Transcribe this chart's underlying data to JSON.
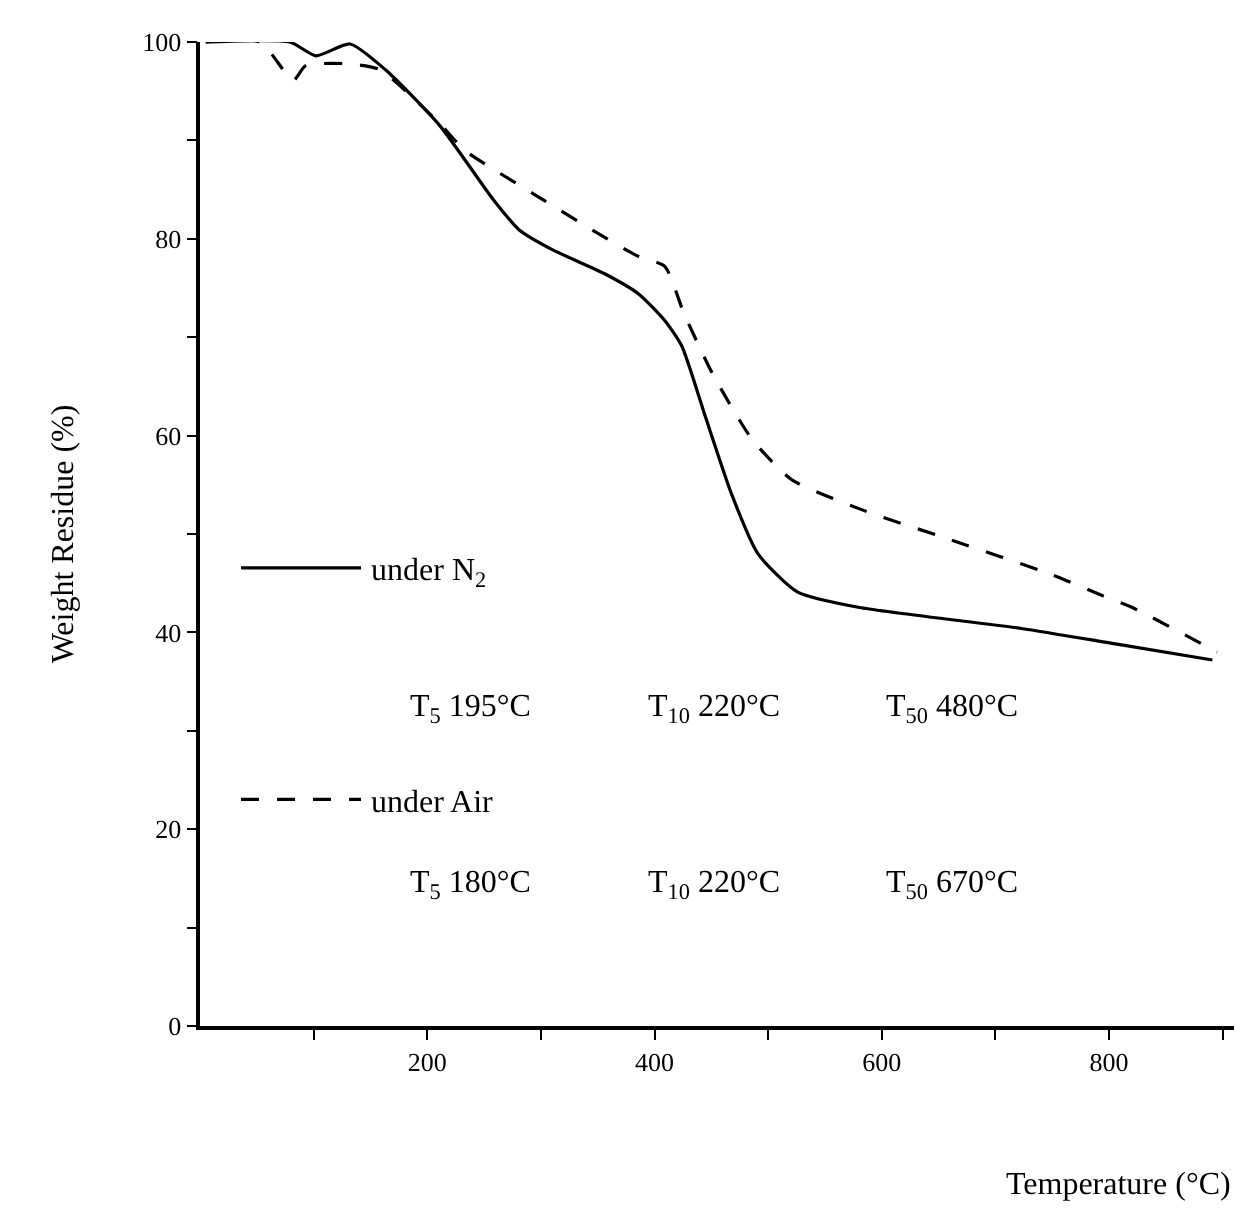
{
  "chart_data": {
    "type": "line",
    "xlabel": "Temperature (°C)",
    "ylabel": "Weight Residue (%)",
    "xlim": [
      0,
      910
    ],
    "ylim": [
      0,
      100
    ],
    "xticks": [
      {
        "value": 100,
        "label": null
      },
      200,
      {
        "value": 300,
        "label": null
      },
      400,
      {
        "value": 500,
        "label": null
      },
      600,
      {
        "value": 700,
        "label": null
      },
      800,
      {
        "value": 900,
        "label": null
      }
    ],
    "yticks": [
      0,
      {
        "value": 10,
        "label": null
      },
      20,
      {
        "value": 30,
        "label": null
      },
      40,
      {
        "value": 50,
        "label": null
      },
      60,
      {
        "value": 70,
        "label": null
      },
      80,
      {
        "value": 90,
        "label": null
      },
      100
    ],
    "grid": false,
    "legend": "bottom left",
    "marker": "none",
    "series": [
      {
        "name": "under N$_{2}$",
        "color": "#000000",
        "line_style": "solid",
        "x": [
          5,
          79,
          102,
          132,
          163,
          211,
          258,
          281,
          310,
          357,
          386,
          409,
          424,
          444,
          468,
          491,
          526,
          582,
          723,
          807,
          891
        ],
        "values": [
          100,
          100,
          98.6,
          99.8,
          97.2,
          91.5,
          84,
          80.9,
          78.9,
          76.4,
          74.4,
          71.7,
          69.1,
          62.2,
          54,
          48,
          44.1,
          42.5,
          40.4,
          38.8,
          37.2
        ]
      },
      {
        "name": "under Air",
        "color": "#000000",
        "line_style": "dashed",
        "x": [
          5,
          53,
          82,
          93,
          128,
          158,
          211,
          233,
          293,
          351,
          386,
          409,
          426,
          451,
          486,
          521,
          584,
          661,
          749,
          795,
          821,
          895
        ],
        "values": [
          100,
          100,
          96.1,
          97.6,
          97.8,
          97.2,
          91.7,
          89,
          84.6,
          80.5,
          78.2,
          77.2,
          72.4,
          66.3,
          59.6,
          55.5,
          52.4,
          49.4,
          45.9,
          43.7,
          42.5,
          38
        ]
      }
    ],
    "annotations": [
      "T$_{5}$ 195°C",
      "T$_{10}$ 220°C",
      "T$_{50}$ 480°C",
      "T$_{5}$ 180°C",
      "T$_{10}$ 220°C",
      "T$_{50}$ 670°C"
    ]
  }
}
